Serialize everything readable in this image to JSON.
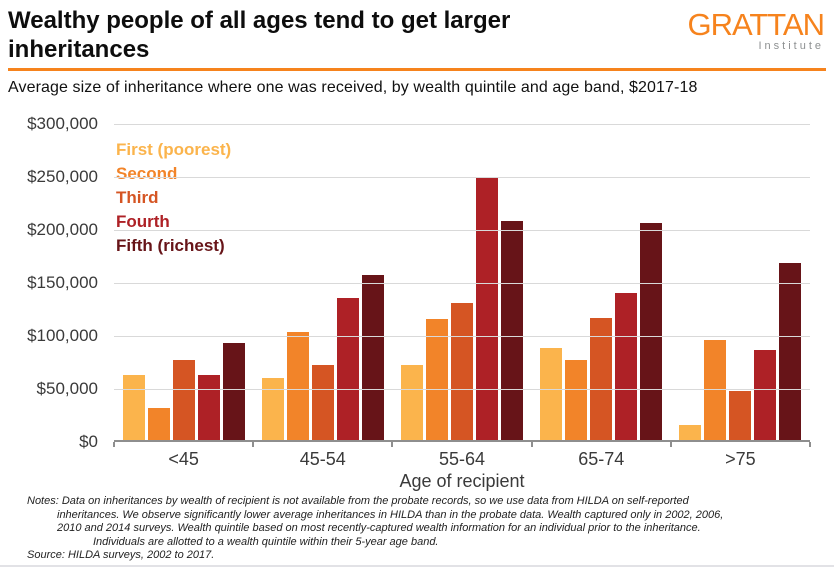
{
  "header": {
    "title_line1": "Wealthy people of all ages tend to get larger",
    "title_line2": "inheritances",
    "logo_text": "GRATTAN",
    "logo_subtext": "Institute",
    "accent_color": "#F6831D"
  },
  "subtitle": "Average size of inheritance where one was received, by wealth quintile and age band, $2017-18",
  "chart_data": {
    "type": "bar",
    "title": "Wealthy people of all ages tend to get larger inheritances",
    "subtitle": "Average size of inheritance where one was received, by wealth quintile and age band, $2017-18",
    "categories": [
      "<45",
      "45-54",
      "55-64",
      "65-74",
      ">75"
    ],
    "series": [
      {
        "name": "First (poorest)",
        "color": "#FBB44C",
        "values": [
          62000,
          59000,
          71000,
          87000,
          14000
        ]
      },
      {
        "name": "Second",
        "color": "#F28429",
        "values": [
          30000,
          103000,
          115000,
          76000,
          95000
        ]
      },
      {
        "name": "Third",
        "color": "#D55523",
        "values": [
          76000,
          71000,
          130000,
          116000,
          47000
        ]
      },
      {
        "name": "Fourth",
        "color": "#AE2126",
        "values": [
          62000,
          135000,
          250000,
          140000,
          85000
        ]
      },
      {
        "name": "Fifth (richest)",
        "color": "#671418",
        "values": [
          92000,
          157000,
          208000,
          206000,
          168000
        ]
      }
    ],
    "xlabel": "Age of recipient",
    "ylabel": "",
    "ylim": [
      0,
      300000
    ],
    "yticks": [
      {
        "value": 0,
        "label": "$0"
      },
      {
        "value": 50000,
        "label": "$50,000"
      },
      {
        "value": 100000,
        "label": "$100,000"
      },
      {
        "value": 150000,
        "label": "$150,000"
      },
      {
        "value": 200000,
        "label": "$200,000"
      },
      {
        "value": 250000,
        "label": "$250,000"
      },
      {
        "value": 300000,
        "label": "$300,000"
      }
    ],
    "grid": "horizontal",
    "legend_position": "top-left-inside"
  },
  "notes": {
    "lines": [
      "Notes: Data on inheritances by wealth of recipient is not available from the probate records, so we use data from HILDA on self-reported",
      "inheritances. We observe significantly lower average inheritances in HILDA than in the probate data. Wealth captured only in 2002, 2006,",
      "2010 and 2014 surveys. Wealth quintile based on most recently-captured wealth information for an individual prior to the inheritance.",
      "Individuals are allotted to a wealth quintile within their 5-year age band."
    ],
    "source": "Source: HILDA surveys, 2002 to 2017."
  }
}
